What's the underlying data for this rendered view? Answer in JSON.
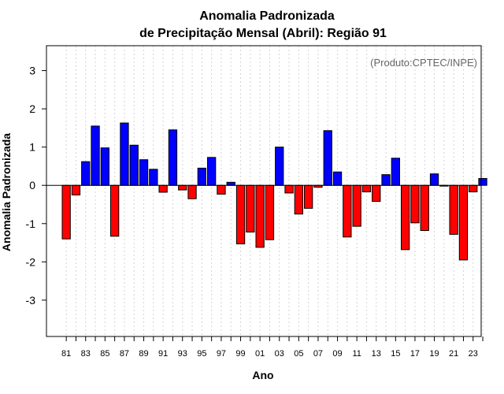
{
  "chart_data": {
    "type": "bar",
    "title_line1": "Anomalia Padronizada",
    "title_line2": "de Precipitação Mensal (Abril): Região 91",
    "credit": "(Produto:CPTEC/INPE)",
    "xlabel": "Ano",
    "ylabel": "Anomalia Padronizada",
    "ylim": [
      -3.95,
      3.65
    ],
    "yticks": [
      "-3",
      "-2",
      "-1",
      "0",
      "1",
      "2",
      "3"
    ],
    "grid": "vertical dotted",
    "categories": [
      "81",
      "82",
      "83",
      "84",
      "85",
      "86",
      "87",
      "88",
      "89",
      "90",
      "91",
      "92",
      "93",
      "94",
      "95",
      "96",
      "97",
      "98",
      "99",
      "00",
      "01",
      "02",
      "03",
      "04",
      "05",
      "06",
      "07",
      "08",
      "09",
      "10",
      "11",
      "12",
      "13",
      "14",
      "15",
      "16",
      "17",
      "18",
      "19",
      "20",
      "21",
      "22",
      "23",
      "24"
    ],
    "xtick_labels": [
      "81",
      "83",
      "85",
      "87",
      "89",
      "91",
      "93",
      "95",
      "97",
      "99",
      "01",
      "03",
      "05",
      "07",
      "09",
      "11",
      "13",
      "15",
      "17",
      "19",
      "21",
      "23"
    ],
    "values": [
      -1.4,
      -0.25,
      0.62,
      1.55,
      0.98,
      -1.33,
      1.63,
      1.05,
      0.67,
      0.42,
      -0.18,
      1.45,
      -0.12,
      -0.35,
      0.45,
      0.73,
      -0.23,
      0.08,
      -1.53,
      -1.22,
      -1.62,
      -1.42,
      1.0,
      -0.2,
      -0.75,
      -0.6,
      -0.05,
      1.43,
      0.35,
      -1.35,
      -1.07,
      -0.17,
      -0.42,
      0.28,
      0.71,
      -1.68,
      -0.98,
      -1.18,
      0.3,
      -0.02,
      -1.28,
      -1.95,
      -0.17,
      0.18
    ],
    "colors": {
      "positive": "#0000ff",
      "negative": "#ff0000",
      "border": "#000000",
      "grid": "#d3d3d3"
    }
  }
}
